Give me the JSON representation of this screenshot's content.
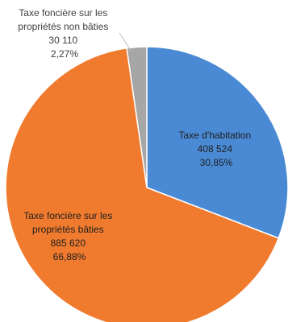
{
  "chart_data": {
    "type": "pie",
    "title": "",
    "slices": [
      {
        "name_lines": [
          "Taxe d'habitation"
        ],
        "value": 408524,
        "value_label": "408 524",
        "percent": 30.85,
        "percent_label": "30,85%",
        "color": "#4a8ad4"
      },
      {
        "name_lines": [
          "Taxe foncière sur les",
          "propriétés bâties"
        ],
        "value": 885620,
        "value_label": "885 620",
        "percent": 66.88,
        "percent_label": "66,88%",
        "color": "#f07b2e"
      },
      {
        "name_lines": [
          "Taxe foncière sur les",
          "propriétés non bâties"
        ],
        "value": 30110,
        "value_label": "30 110",
        "percent": 2.27,
        "percent_label": "2,27%",
        "color": "#a6a6a6"
      }
    ],
    "start_angle_deg": 0,
    "direction": "clockwise"
  }
}
